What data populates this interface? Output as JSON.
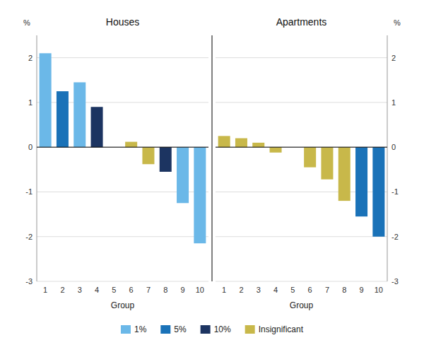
{
  "chart_data": [
    {
      "type": "bar",
      "title": "Houses",
      "xlabel": "Group",
      "ylabel": "%",
      "categories": [
        "1",
        "2",
        "3",
        "4",
        "5",
        "6",
        "7",
        "8",
        "9",
        "10"
      ],
      "stacked": true,
      "grid": true,
      "series": [
        {
          "name": "1%",
          "color": "#6BB8E8",
          "values": [
            2.1,
            null,
            1.45,
            null,
            null,
            null,
            null,
            null,
            -1.25,
            -2.15
          ]
        },
        {
          "name": "5%",
          "color": "#1A72B8",
          "values": [
            null,
            1.25,
            null,
            null,
            null,
            null,
            null,
            null,
            null,
            null
          ]
        },
        {
          "name": "10%",
          "color": "#1C3461",
          "values": [
            null,
            null,
            null,
            0.9,
            null,
            null,
            null,
            -0.55,
            null,
            null
          ]
        },
        {
          "name": "Insignificant",
          "color": "#C8B84A",
          "values": [
            null,
            null,
            null,
            null,
            null,
            0.12,
            -0.38,
            null,
            null,
            null
          ]
        }
      ],
      "ylim": [
        -3.0,
        2.5
      ],
      "yticks": [
        -3,
        -2,
        -1,
        0,
        1,
        2
      ]
    },
    {
      "type": "bar",
      "title": "Apartments",
      "xlabel": "Group",
      "ylabel": "%",
      "categories": [
        "1",
        "2",
        "3",
        "4",
        "5",
        "6",
        "7",
        "8",
        "9",
        "10"
      ],
      "stacked": true,
      "grid": true,
      "series": [
        {
          "name": "5%",
          "color": "#1A72B8",
          "values": [
            null,
            null,
            null,
            null,
            null,
            null,
            null,
            null,
            -1.55,
            -2.0
          ]
        },
        {
          "name": "Insignificant",
          "color": "#C8B84A",
          "values": [
            0.25,
            0.2,
            0.1,
            -0.12,
            null,
            -0.45,
            -0.72,
            -1.2,
            null,
            null
          ]
        }
      ],
      "ylim": [
        -3.0,
        2.5
      ],
      "yticks": [
        -3,
        -2,
        -1,
        0,
        1,
        2
      ]
    }
  ]
}
